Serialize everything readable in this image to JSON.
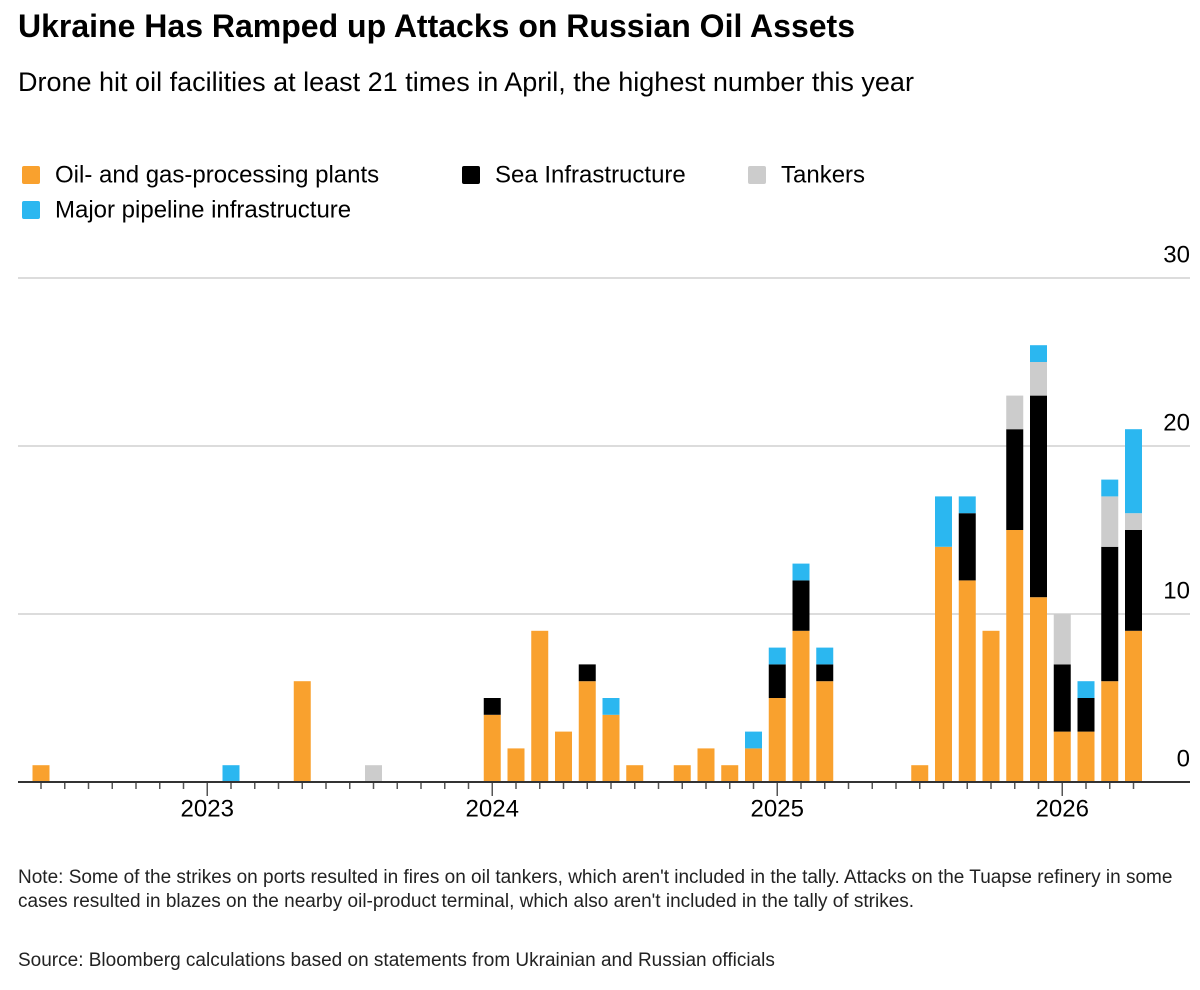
{
  "chart_data": {
    "type": "stacked_bar",
    "title": "Ukraine Has Ramped up Attacks on Russian Oil Assets",
    "subtitle": "Drone hit oil facilities at least 21 times in April, the highest number this year",
    "note": "Note: Some of the strikes on ports resulted in fires on oil tankers, which aren't included in the tally. Attacks on the Tuapse refinery in some cases resulted in blazes on the nearby oil-product terminal, which also aren't included in the tally of strikes.",
    "source": "Source: Bloomberg calculations based on statements from Ukrainian and Russian officials",
    "categories": [
      null,
      null,
      null,
      null,
      null,
      null,
      null,
      "2023",
      null,
      null,
      null,
      null,
      null,
      null,
      null,
      null,
      null,
      null,
      null,
      "2024",
      null,
      null,
      null,
      null,
      null,
      null,
      null,
      null,
      null,
      null,
      null,
      "2025",
      null,
      null,
      null,
      null,
      null,
      null,
      null,
      null,
      null,
      null,
      null,
      "2026",
      null,
      null,
      null
    ],
    "series": [
      {
        "name": "Oil- and gas-processing plants",
        "color": "#f9a12e",
        "values": [
          1,
          0,
          0,
          0,
          0,
          0,
          0,
          0,
          0,
          0,
          0,
          6,
          0,
          0,
          0,
          0,
          0,
          0,
          0,
          4,
          2,
          9,
          3,
          6,
          4,
          1,
          0,
          1,
          2,
          1,
          2,
          5,
          9,
          6,
          0,
          0,
          0,
          1,
          14,
          12,
          9,
          15,
          11,
          3,
          3,
          6,
          9
        ]
      },
      {
        "name": "Sea Infrastructure",
        "color": "#000000",
        "values": [
          0,
          0,
          0,
          0,
          0,
          0,
          0,
          0,
          0,
          0,
          0,
          0,
          0,
          0,
          0,
          0,
          0,
          0,
          0,
          1,
          0,
          0,
          0,
          1,
          0,
          0,
          0,
          0,
          0,
          0,
          0,
          2,
          3,
          1,
          0,
          0,
          0,
          0,
          0,
          4,
          0,
          6,
          12,
          4,
          2,
          8,
          6
        ]
      },
      {
        "name": "Tankers",
        "color": "#cccccc",
        "values": [
          0,
          0,
          0,
          0,
          0,
          0,
          0,
          0,
          0,
          0,
          0,
          0,
          0,
          0,
          1,
          0,
          0,
          0,
          0,
          0,
          0,
          0,
          0,
          0,
          0,
          0,
          0,
          0,
          0,
          0,
          0,
          0,
          0,
          0,
          0,
          0,
          0,
          0,
          0,
          0,
          0,
          2,
          2,
          3,
          0,
          3,
          1
        ]
      },
      {
        "name": "Major pipeline infrastructure",
        "color": "#2bb7f0",
        "values": [
          0,
          0,
          0,
          0,
          0,
          0,
          0,
          0,
          1,
          0,
          0,
          0,
          0,
          0,
          0,
          0,
          0,
          0,
          0,
          0,
          0,
          0,
          0,
          0,
          1,
          0,
          0,
          0,
          0,
          0,
          1,
          1,
          1,
          1,
          0,
          0,
          0,
          0,
          3,
          1,
          0,
          0,
          1,
          0,
          1,
          1,
          5
        ]
      }
    ],
    "ylim": [
      0,
      30
    ],
    "yticks": [
      0,
      10,
      20,
      30
    ],
    "grid": true
  }
}
